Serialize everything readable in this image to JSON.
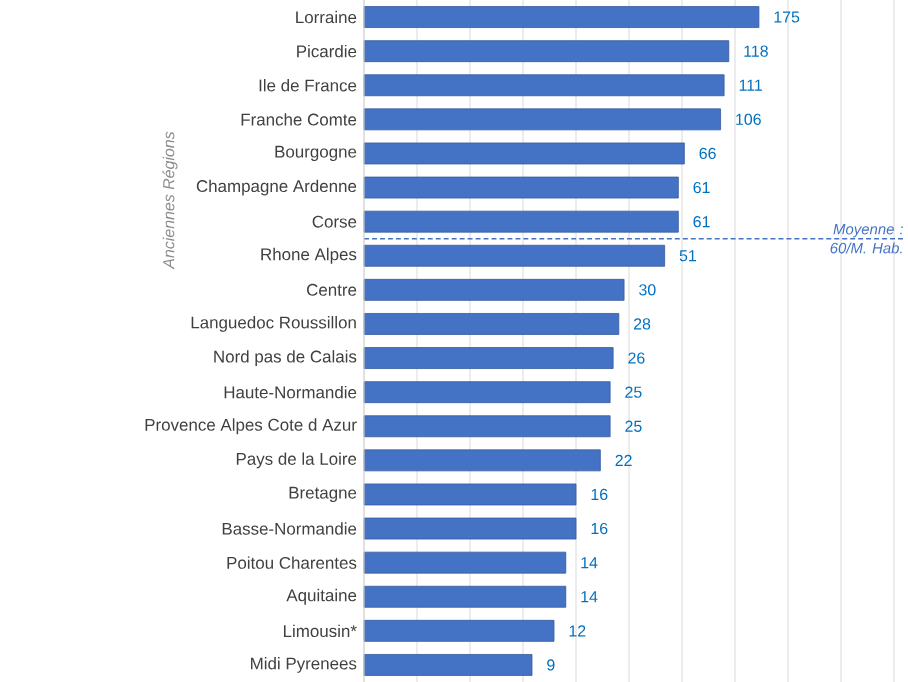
{
  "chart_data": {
    "type": "bar",
    "orientation": "horizontal",
    "ylabel": "Anciennes Régions",
    "categories": [
      "Lorraine",
      "Picardie",
      "Ile de France",
      "Franche Comte",
      "Bourgogne",
      "Champagne Ardenne",
      "Corse",
      "Rhone Alpes",
      "Centre",
      "Languedoc Roussillon",
      "Nord pas de Calais",
      "Haute-Normandie",
      "Provence Alpes Cote d Azur",
      "Pays de la Loire",
      "Bretagne",
      "Basse-Normandie",
      "Poitou Charentes",
      "Aquitaine",
      "Limousin*",
      "Midi Pyrenees"
    ],
    "values": [
      175,
      118,
      111,
      106,
      66,
      61,
      61,
      51,
      30,
      28,
      26,
      25,
      25,
      22,
      16,
      16,
      14,
      14,
      12,
      9
    ],
    "color": "#4472c4",
    "data_labels": true,
    "log": "x",
    "grid": "x",
    "tick_labels": "y",
    "xlim": [
      1,
      1024
    ],
    "xticks": [
      {
        "value": 2,
        "label": null
      },
      {
        "value": 4,
        "label": null
      },
      {
        "value": 8,
        "label": null
      },
      {
        "value": 16,
        "label": null
      },
      {
        "value": 32,
        "label": null
      },
      {
        "value": 64,
        "label": null
      },
      {
        "value": 128,
        "label": null
      },
      {
        "value": 256,
        "label": null
      },
      {
        "value": 512,
        "label": null
      },
      {
        "value": 1024,
        "label": null
      }
    ],
    "ref_lines": [
      {
        "axis": "y",
        "value": "Corse",
        "label": "Moyenne : 60/M. Hab.",
        "line_style": "dashed",
        "color": "#4472c4"
      }
    ]
  }
}
